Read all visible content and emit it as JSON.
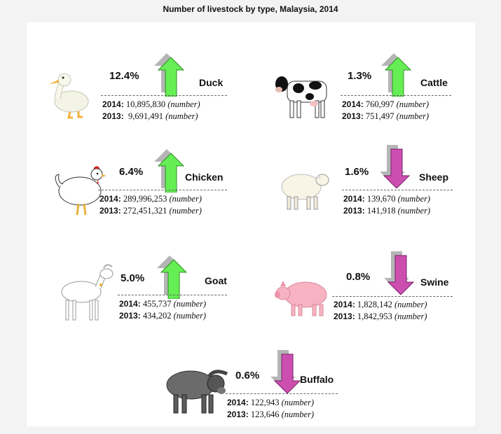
{
  "title": "Number of livestock by type, Malaysia, 2014",
  "colors": {
    "up": "#66ee55",
    "up_stroke": "#2e8f22",
    "down": "#cc4fb0",
    "down_stroke": "#7a1f6a",
    "shadow": "#b5b5b5"
  },
  "unit": "(number)",
  "items": [
    {
      "name": "Duck",
      "icon": "duck-icon",
      "change": "12.4%",
      "direction": "up",
      "y2014_label": "2014:",
      "v2014": "10,895,830",
      "y2013_label": "2013:",
      "v2013": "9,691,491"
    },
    {
      "name": "Cattle",
      "icon": "cow-icon",
      "change": "1.3%",
      "direction": "up",
      "y2014_label": "2014:",
      "v2014": "760,997",
      "y2013_label": "2013:",
      "v2013": "751,497"
    },
    {
      "name": "Chicken",
      "icon": "chicken-icon",
      "change": "6.4%",
      "direction": "up",
      "y2014_label": "2014:",
      "v2014": "289,996,253",
      "y2013_label": "2013:",
      "v2013": "272,451,321"
    },
    {
      "name": "Sheep",
      "icon": "sheep-icon",
      "change": "1.6%",
      "direction": "down",
      "y2014_label": "2014:",
      "v2014": "139,670",
      "y2013_label": "2013:",
      "v2013": "141,918"
    },
    {
      "name": "Goat",
      "icon": "goat-icon",
      "change": "5.0%",
      "direction": "up",
      "y2014_label": "2014:",
      "v2014": "455,737",
      "y2013_label": "2013:",
      "v2013": "434,202"
    },
    {
      "name": "Swine",
      "icon": "pig-icon",
      "change": "0.8%",
      "direction": "down",
      "y2014_label": "2014:",
      "v2014": "1,828,142",
      "y2013_label": "2013:",
      "v2013": "1,842,953"
    },
    {
      "name": "Buffalo",
      "icon": "buffalo-icon",
      "change": "0.6%",
      "direction": "down",
      "y2014_label": "2014:",
      "v2014": "122,943",
      "y2013_label": "2013:",
      "v2013": "123,646"
    }
  ]
}
